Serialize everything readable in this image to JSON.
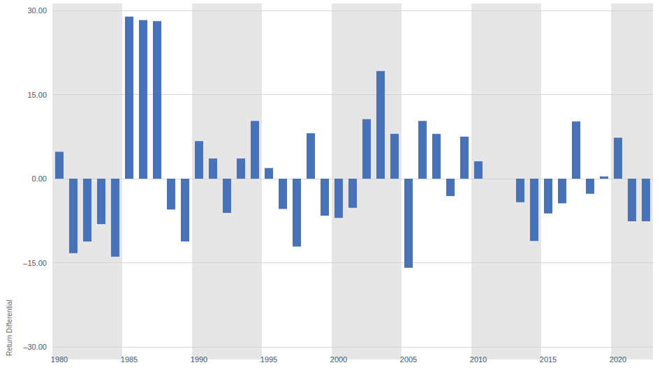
{
  "chart_data": {
    "type": "bar",
    "ylabel": "Return Differential",
    "categories": [
      "1980",
      null,
      null,
      null,
      null,
      "1985",
      null,
      null,
      null,
      null,
      "1990",
      null,
      null,
      null,
      null,
      "1995",
      null,
      null,
      null,
      null,
      "2000",
      null,
      null,
      null,
      null,
      "2005",
      null,
      null,
      null,
      null,
      "2010",
      null,
      null,
      null,
      null,
      "2015",
      null,
      null,
      null,
      null,
      "2020",
      null,
      null
    ],
    "values": [
      4.8,
      -13.3,
      -11.2,
      -8.1,
      -13.9,
      28.9,
      28.3,
      28.1,
      -5.5,
      -11.2,
      6.7,
      3.6,
      -6.1,
      3.6,
      10.3,
      1.9,
      -5.4,
      -12.1,
      8.1,
      -6.6,
      -7.0,
      -5.2,
      10.6,
      19.2,
      8.0,
      -15.9,
      10.3,
      8.0,
      -3.1,
      7.5,
      3.1,
      null,
      null,
      -4.2,
      -11.1,
      -6.2,
      -4.4,
      10.2,
      -2.7,
      0.4,
      7.3,
      -7.6,
      -7.6
    ],
    "color": "#4a72b8",
    "ylim": [
      -30,
      30
    ],
    "yticks": [
      {
        "value": -30,
        "label": "–30.00"
      },
      {
        "value": -15,
        "label": "–15.00"
      },
      {
        "value": 0,
        "label": "0.00"
      },
      {
        "value": 15,
        "label": "15.00"
      },
      {
        "value": 30,
        "label": "30.00"
      }
    ],
    "grid": true
  }
}
